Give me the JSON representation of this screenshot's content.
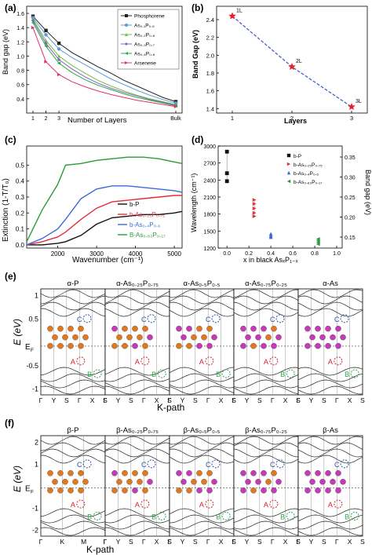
{
  "panel_labels": [
    "(a)",
    "(b)",
    "(c)",
    "(d)",
    "(e)",
    "(f)"
  ],
  "chart_data": [
    {
      "panel": "a",
      "type": "line",
      "xlabel": "Number of Layers",
      "ylabel": "Band gap (eV)",
      "x_ticks": [
        "1",
        "2",
        "3",
        "Bulk"
      ],
      "y_ticks": [
        "0.4",
        "0.6",
        "0.8",
        "1.0",
        "1.2",
        "1.4",
        "1.6"
      ],
      "ylim": [
        0.2,
        1.7
      ],
      "x": [
        1,
        2,
        3,
        4,
        5,
        6,
        7,
        8,
        9,
        10,
        11,
        12
      ],
      "series": [
        {
          "name": "Phosphorene",
          "color": "#222222",
          "marker": "square",
          "values": [
            1.56,
            1.36,
            1.18,
            1.05,
            0.95,
            0.85,
            0.76,
            0.66,
            0.58,
            0.5,
            0.42,
            0.36
          ]
        },
        {
          "name": "As₀.₁P₀.₉",
          "color": "#5b9bd5",
          "marker": "circle",
          "values": [
            1.54,
            1.3,
            1.1,
            0.98,
            0.88,
            0.78,
            0.68,
            0.6,
            0.52,
            0.45,
            0.39,
            0.34
          ]
        },
        {
          "name": "As₀.₂P₀.₈",
          "color": "#70c040",
          "marker": "triangle",
          "values": [
            1.52,
            1.22,
            1.0,
            0.87,
            0.76,
            0.66,
            0.58,
            0.51,
            0.45,
            0.4,
            0.36,
            0.32
          ]
        },
        {
          "name": "As₀.₃P₀.₇",
          "color": "#8a5fc4",
          "marker": "diamond",
          "values": [
            1.5,
            1.18,
            0.95,
            0.82,
            0.71,
            0.62,
            0.55,
            0.49,
            0.44,
            0.39,
            0.35,
            0.31
          ]
        },
        {
          "name": "As₀.₄P₀.₆",
          "color": "#2aa84a",
          "marker": "triangle-left",
          "values": [
            1.47,
            1.14,
            0.9,
            0.77,
            0.67,
            0.59,
            0.53,
            0.47,
            0.42,
            0.38,
            0.34,
            0.3
          ]
        },
        {
          "name": "Arsenene",
          "color": "#e0306a",
          "marker": "triangle-right",
          "values": [
            1.4,
            0.92,
            0.74,
            0.64,
            0.57,
            0.51,
            0.46,
            0.42,
            0.38,
            0.35,
            0.32,
            0.29
          ]
        }
      ]
    },
    {
      "panel": "b",
      "type": "line",
      "xlabel": "Layers",
      "ylabel": "Band Gap (eV)",
      "x_ticks": [
        "1",
        "2",
        "3"
      ],
      "y_ticks": [
        "1.4",
        "1.6",
        "1.8",
        "2.0",
        "2.2",
        "2.4"
      ],
      "ylim": [
        1.35,
        2.55
      ],
      "x": [
        1,
        2,
        3
      ],
      "point_labels": [
        "1L",
        "2L",
        "3L"
      ],
      "series": [
        {
          "name": "",
          "color": "#e8202a",
          "values": [
            2.44,
            1.87,
            1.42
          ]
        }
      ]
    },
    {
      "panel": "c",
      "type": "line",
      "xlabel": "Wavenumber (cm⁻¹)",
      "ylabel": "Extinction (1-T/T₀)",
      "x_ticks": [
        "2000",
        "3000",
        "4000",
        "5000"
      ],
      "y_ticks": [
        "0.0",
        "0.1",
        "0.2",
        "0.3",
        "0.4",
        "0.5"
      ],
      "xlim": [
        1200,
        5200
      ],
      "ylim": [
        -0.02,
        0.62
      ],
      "x": [
        1200,
        1600,
        2000,
        2200,
        2600,
        3000,
        3400,
        3800,
        4200,
        4600,
        5000,
        5200
      ],
      "series": [
        {
          "name": "b-P",
          "color": "#111111",
          "values": [
            0.0,
            0.0,
            0.01,
            0.02,
            0.06,
            0.13,
            0.17,
            0.18,
            0.19,
            0.19,
            0.2,
            0.21
          ]
        },
        {
          "name": "b-As₀.₂₅P₀.₇₅",
          "color": "#e0303a",
          "values": [
            0.0,
            0.02,
            0.05,
            0.08,
            0.16,
            0.23,
            0.27,
            0.28,
            0.29,
            0.3,
            0.31,
            0.31
          ]
        },
        {
          "name": "b-As₀.₄P₀.₆",
          "color": "#3f68d8",
          "values": [
            0.0,
            0.04,
            0.1,
            0.16,
            0.29,
            0.35,
            0.37,
            0.37,
            0.36,
            0.35,
            0.34,
            0.33
          ]
        },
        {
          "name": "B-As₀.₈₃P₀.₁₇",
          "color": "#2a9a3a",
          "values": [
            0.02,
            0.22,
            0.38,
            0.5,
            0.51,
            0.53,
            0.54,
            0.55,
            0.55,
            0.54,
            0.52,
            0.51
          ]
        }
      ]
    },
    {
      "panel": "d",
      "type": "scatter",
      "xlabel": "x in black AsₓP₁₋ₓ",
      "ylabel": "Wavelength (cm⁻¹)",
      "y2label": "Band gap (eV)",
      "x_ticks": [
        "0.0",
        "0.2",
        "0.4",
        "0.6",
        "0.8",
        "1.0"
      ],
      "y_ticks": [
        "1200",
        "1500",
        "1800",
        "2100",
        "2400",
        "2700",
        "3000"
      ],
      "y2_ticks": [
        "0.15",
        "0.20",
        "0.25",
        "0.30",
        "0.35"
      ],
      "xlim": [
        -0.08,
        1.05
      ],
      "ylim": [
        1200,
        3000
      ],
      "series": [
        {
          "name": "b-P",
          "color": "#111111",
          "marker": "square",
          "x": [
            0.0,
            0.0,
            0.0
          ],
          "values": [
            2900,
            2520,
            2380
          ]
        },
        {
          "name": "b-As₀.₂₅P₀.₇₅",
          "color": "#e0303a",
          "marker": "triangle-right",
          "x": [
            0.25,
            0.25,
            0.25,
            0.25,
            0.25
          ],
          "values": [
            2050,
            1980,
            1900,
            1820,
            1760
          ]
        },
        {
          "name": "b-As₀.₄P₀.₆",
          "color": "#3f68d8",
          "marker": "triangle",
          "x": [
            0.4,
            0.4,
            0.4
          ],
          "values": [
            1450,
            1420,
            1395
          ]
        },
        {
          "name": "b-As₀.₈₃P₀.₁₇",
          "color": "#2a9a3a",
          "marker": "triangle-left",
          "x": [
            0.83,
            0.83,
            0.83,
            0.83
          ],
          "values": [
            1360,
            1330,
            1300,
            1270
          ]
        }
      ]
    }
  ],
  "panel_e": {
    "ylabel": "E (eV)",
    "xlabel": "K-path",
    "ef_label": "E",
    "ef_sub": "F",
    "y_ticks": [
      "1",
      "0.5",
      "",
      "-0.5",
      "-1"
    ],
    "kpoints": [
      "Γ",
      "Y",
      "S",
      "Γ",
      "X",
      "S"
    ],
    "titles": [
      "α-P",
      "α-As₀.₂₅P₀.₇₅",
      "α-As₀.₅P₀.₅",
      "α-As₀.₇₅P₀.₂₅",
      "α-As"
    ],
    "point_labels": [
      "C",
      "A",
      "B"
    ]
  },
  "panel_f": {
    "ylabel": "E (eV)",
    "xlabel": "K-path",
    "ef_label": "E",
    "ef_sub": "F",
    "y_ticks": [
      "2",
      "1",
      "",
      "-1",
      "-2"
    ],
    "kpoints_first": [
      "Γ",
      "K",
      "M",
      "Γ"
    ],
    "kpoints": [
      "Γ",
      "Y",
      "S",
      "Γ",
      "X",
      "S"
    ],
    "titles": [
      "β-P",
      "β-As₀.₂₅P₀.₇₅",
      "β-As₀.₅P₀.₅",
      "β-As₀.₇₅P₀.₂₅",
      "β-As"
    ],
    "point_labels": [
      "C",
      "A",
      "B"
    ]
  }
}
